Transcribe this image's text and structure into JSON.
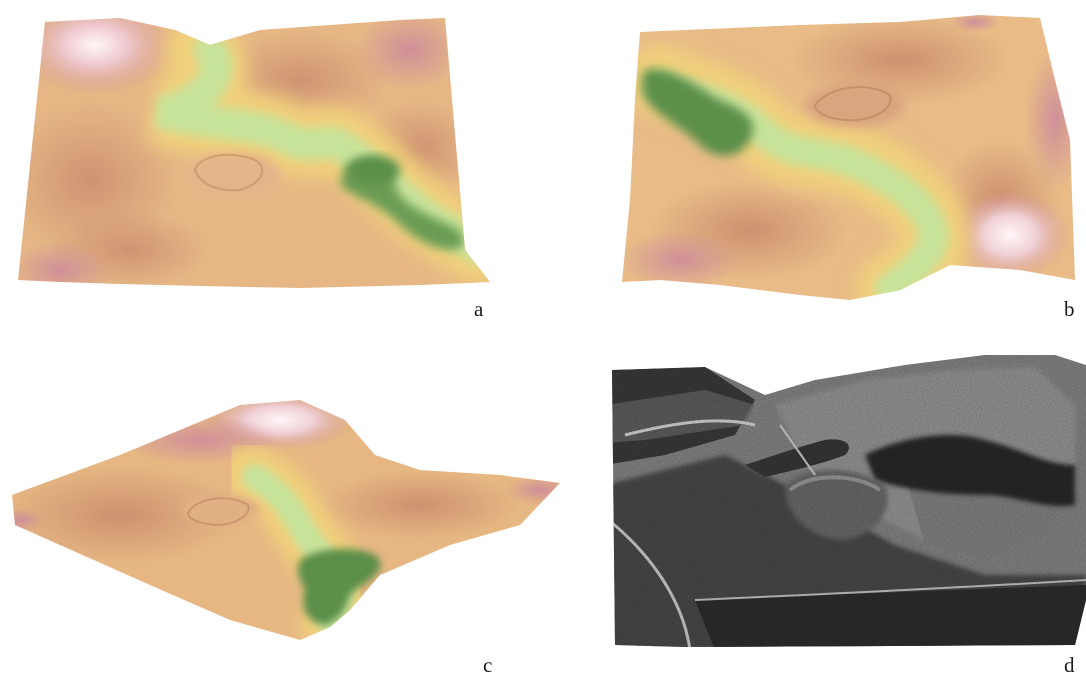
{
  "figure": {
    "panels": [
      {
        "id": "a",
        "label": "a",
        "kind": "3D terrain model (colour-shaded elevation)"
      },
      {
        "id": "b",
        "label": "b",
        "kind": "3D terrain model (colour-shaded elevation)"
      },
      {
        "id": "c",
        "label": "c",
        "kind": "3D terrain model (colour-shaded elevation)"
      },
      {
        "id": "d",
        "label": "d",
        "kind": "oblique aerial photograph (greyscale)"
      }
    ],
    "colors": {
      "low_green": "#5c8f4a",
      "mid_green": "#b9d98c",
      "yellow": "#ecc97a",
      "tan": "#d6a077",
      "pink_high": "#cf8f99",
      "peak_white": "#fbeef0",
      "photo_dark": "#2e2e2e",
      "photo_light": "#9c9c9c"
    }
  }
}
